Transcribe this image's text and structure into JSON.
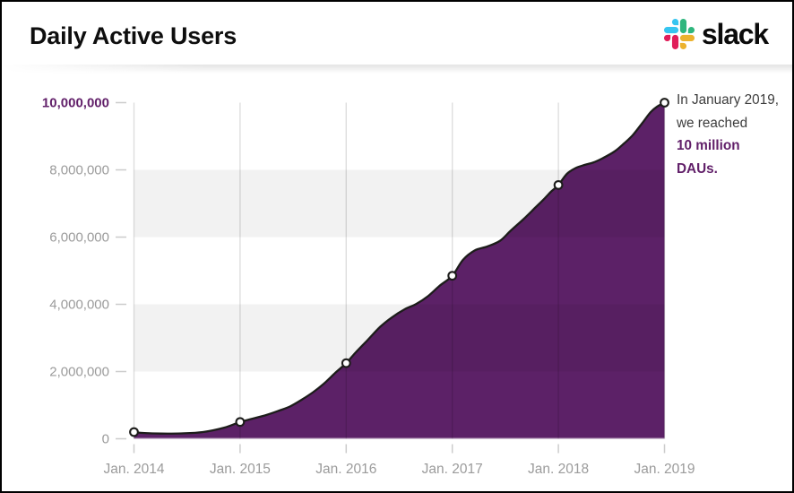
{
  "header": {
    "title": "Daily Active Users",
    "brand": "slack"
  },
  "annotation": {
    "line1": "In January 2019,",
    "line2": "we reached",
    "line3": "10 million",
    "line4": "DAUs."
  },
  "chart_data": {
    "type": "area",
    "title": "Daily Active Users",
    "x_tick_labels": [
      "Jan. 2014",
      "Jan. 2015",
      "Jan. 2016",
      "Jan. 2017",
      "Jan. 2018",
      "Jan. 2019"
    ],
    "y_tick_labels_top_to_bottom": [
      "10,000,000",
      "8,000,000",
      "6,000,000",
      "4,000,000",
      "2,000,000",
      "0"
    ],
    "ylim": [
      0,
      10000000
    ],
    "xlabel": "",
    "ylabel": "",
    "grid": "vertical-lines-and-alternating-horizontal-bands",
    "legend": null,
    "markers": [
      {
        "label": "Jan. 2014",
        "value": 200000
      },
      {
        "label": "Jan. 2015",
        "value": 500000
      },
      {
        "label": "Jan. 2016",
        "value": 2250000
      },
      {
        "label": "Jan. 2017",
        "value": 4850000
      },
      {
        "label": "Jan. 2018",
        "value": 7550000
      },
      {
        "label": "Jan. 2019",
        "value": 10000000
      }
    ],
    "curve": [
      [
        2014.0,
        200000
      ],
      [
        2014.1,
        170000
      ],
      [
        2014.25,
        155000
      ],
      [
        2014.45,
        160000
      ],
      [
        2014.65,
        200000
      ],
      [
        2014.85,
        330000
      ],
      [
        2015.0,
        500000
      ],
      [
        2015.12,
        600000
      ],
      [
        2015.25,
        710000
      ],
      [
        2015.37,
        840000
      ],
      [
        2015.47,
        960000
      ],
      [
        2015.58,
        1160000
      ],
      [
        2015.69,
        1390000
      ],
      [
        2015.79,
        1640000
      ],
      [
        2015.9,
        1970000
      ],
      [
        2016.0,
        2250000
      ],
      [
        2016.09,
        2570000
      ],
      [
        2016.2,
        2930000
      ],
      [
        2016.32,
        3330000
      ],
      [
        2016.43,
        3610000
      ],
      [
        2016.55,
        3850000
      ],
      [
        2016.66,
        4010000
      ],
      [
        2016.77,
        4240000
      ],
      [
        2016.88,
        4550000
      ],
      [
        2017.0,
        4850000
      ],
      [
        2017.1,
        5320000
      ],
      [
        2017.21,
        5600000
      ],
      [
        2017.33,
        5720000
      ],
      [
        2017.45,
        5890000
      ],
      [
        2017.55,
        6190000
      ],
      [
        2017.67,
        6530000
      ],
      [
        2017.78,
        6870000
      ],
      [
        2017.87,
        7150000
      ],
      [
        2017.93,
        7350000
      ],
      [
        2018.0,
        7550000
      ],
      [
        2018.08,
        7880000
      ],
      [
        2018.16,
        8050000
      ],
      [
        2018.25,
        8150000
      ],
      [
        2018.33,
        8220000
      ],
      [
        2018.42,
        8350000
      ],
      [
        2018.53,
        8550000
      ],
      [
        2018.62,
        8790000
      ],
      [
        2018.7,
        9030000
      ],
      [
        2018.79,
        9390000
      ],
      [
        2018.87,
        9720000
      ],
      [
        2018.93,
        9880000
      ],
      [
        2019.0,
        10000000
      ]
    ],
    "colors": {
      "area_fill": "#5c2167",
      "line": "#1d1d1b",
      "accent_text": "#611f69",
      "axis_text": "#9b9b9b",
      "band": "#f2f2f2"
    }
  },
  "slack_logo_colors": {
    "blue": "#36C5F0",
    "green": "#2EB67D",
    "yellow": "#ECB22E",
    "red": "#E01E5A"
  }
}
